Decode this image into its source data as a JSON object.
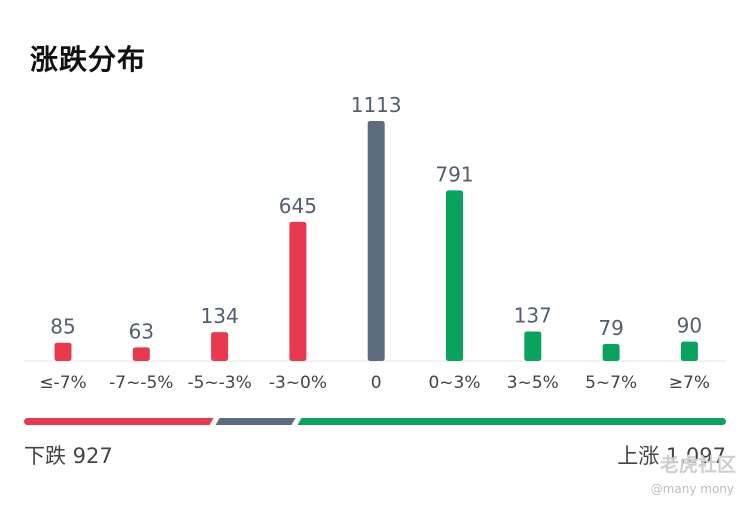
{
  "title": "涨跌分布",
  "chart_data": {
    "type": "bar",
    "categories": [
      "≤-7%",
      "-7~-5%",
      "-5~-3%",
      "-3~0%",
      "0",
      "0~3%",
      "3~5%",
      "5~7%",
      "≥7%"
    ],
    "values": [
      85,
      63,
      134,
      645,
      1113,
      791,
      137,
      79,
      90
    ],
    "colors": [
      "#e8394f",
      "#e8394f",
      "#e8394f",
      "#e8394f",
      "#5d6b80",
      "#0aa35e",
      "#0aa35e",
      "#0aa35e",
      "#0aa35e"
    ],
    "ylim": [
      0,
      1113
    ],
    "grid": false,
    "legend": "none"
  },
  "summary": {
    "down_label": "下跌 927",
    "up_label": "上涨 1,097",
    "down_count": 927,
    "flat_count": 1113,
    "up_count": 1097,
    "down_color": "#e8394f",
    "flat_color": "#5d6b80",
    "up_color": "#0aa35e"
  },
  "watermark": {
    "logo_text": "老虎社区",
    "user": "@many mony"
  }
}
